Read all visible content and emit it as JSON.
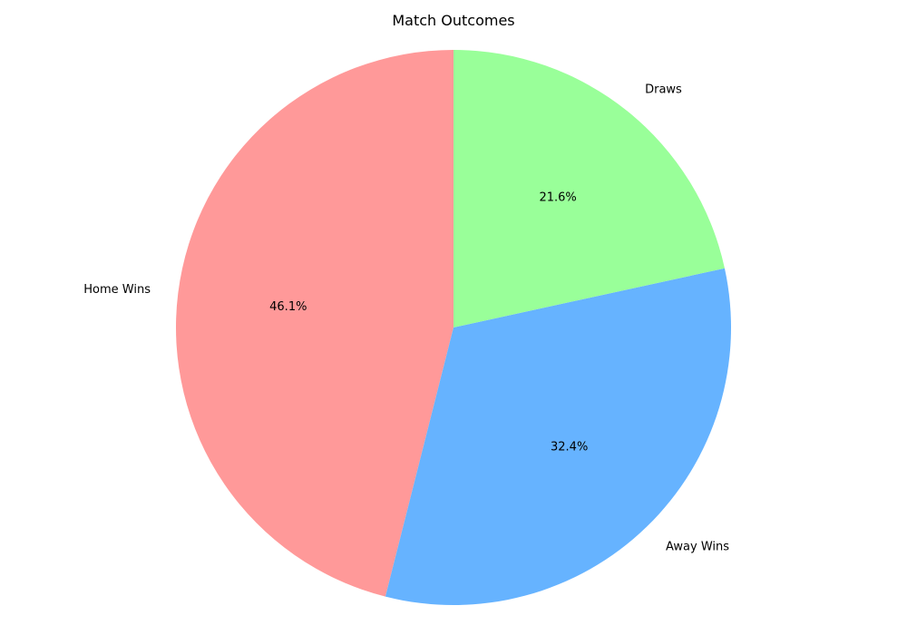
{
  "chart_data": {
    "type": "pie",
    "title": "Match Outcomes",
    "start_angle_deg": 90,
    "direction": "counterclockwise",
    "slices": [
      {
        "label": "Home Wins",
        "pct_label": "46.1%",
        "value": 46.1,
        "color": "#ff9999"
      },
      {
        "label": "Away Wins",
        "pct_label": "32.4%",
        "value": 32.4,
        "color": "#66b3ff"
      },
      {
        "label": "Draws",
        "pct_label": "21.6%",
        "value": 21.6,
        "color": "#99ff99"
      }
    ]
  }
}
